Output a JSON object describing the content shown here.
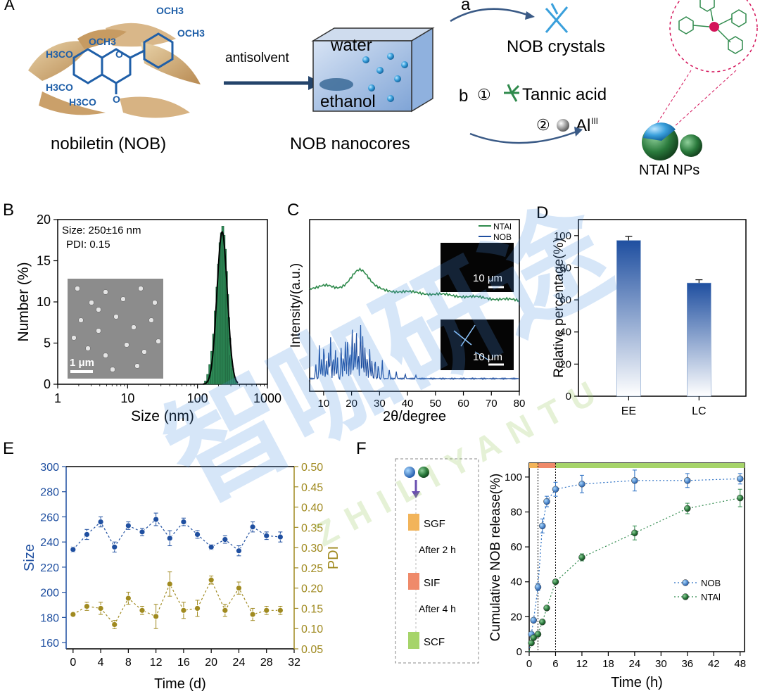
{
  "panels": {
    "A": "A",
    "a": "a",
    "b": "b",
    "B": "B",
    "C": "C",
    "D": "D",
    "E": "E",
    "F": "F"
  },
  "schematic": {
    "substituents": [
      "OCH3",
      "OCH3",
      "H3CO",
      "OCH3",
      "H3CO",
      "H3CO"
    ],
    "ring_oxygens": [
      "O",
      "O"
    ],
    "nobiletin_label": "nobiletin (NOB)",
    "antisolvent_label": "antisolvent",
    "water_label": "water",
    "ethanol_label": "ethanol",
    "nanocores_label": "NOB nanocores",
    "crystals_label": "NOB crystals",
    "step1_num": "①",
    "step1_label": "Tannic acid",
    "step2_num": "②",
    "step2_label": "Al",
    "step2_sup": "III",
    "ntal_label": "NTAl NPs",
    "colors": {
      "accent_blue": "#1f5fa8",
      "accent_green": "#2f8a4c",
      "magenta": "#d4145a"
    }
  },
  "watermark": {
    "text": "智咖研途",
    "subtext": "ZHILIYANTU"
  },
  "chart_data": [
    {
      "panel": "B",
      "type": "bar",
      "title": "",
      "xlabel": "Size (nm)",
      "ylabel": "Number (%)",
      "xscale": "log",
      "xlim": [
        1,
        1000
      ],
      "ylim": [
        0,
        20
      ],
      "xticks": [
        1,
        10,
        100,
        1000
      ],
      "xticklabels": [
        "1",
        "10",
        "100",
        "1000"
      ],
      "yticks": [
        0,
        5,
        10,
        15,
        20
      ],
      "yticklabels": [
        "0",
        "5",
        "10",
        "15",
        "20"
      ],
      "annotations": [
        "Size: 250±16 nm",
        "PDI: 0.15"
      ],
      "inset_scalebar": "1 μm",
      "bins": [
        130,
        140,
        150,
        160,
        170,
        180,
        190,
        200,
        210,
        220,
        230,
        240,
        250,
        260,
        270,
        280,
        290,
        300,
        320,
        340,
        360
      ],
      "values": [
        0.4,
        1.2,
        2.4,
        4.0,
        6.1,
        8.9,
        11.8,
        14.6,
        17.2,
        18.4,
        19.2,
        18.1,
        16.4,
        13.7,
        10.9,
        8.1,
        5.6,
        3.5,
        1.9,
        0.8,
        0.3
      ],
      "fit_peak": 225,
      "fit_max": 18.5
    },
    {
      "panel": "C",
      "type": "line",
      "xlabel": "2θ/degree",
      "ylabel": "Intensity/(a.u.)",
      "xlim": [
        5,
        80
      ],
      "xticks": [
        10,
        20,
        30,
        40,
        50,
        60,
        70,
        80
      ],
      "xticklabels": [
        "10",
        "20",
        "30",
        "40",
        "50",
        "60",
        "70",
        "80"
      ],
      "series": [
        {
          "name": "NTAl",
          "color": "#2f8a4c"
        },
        {
          "name": "NOB",
          "color": "#1f4fa0"
        }
      ],
      "nob_peaks": [
        7.2,
        8.5,
        9.3,
        10.1,
        11.0,
        11.8,
        12.5,
        13.4,
        14.2,
        15.0,
        16.3,
        17.1,
        17.8,
        18.6,
        19.4,
        20.2,
        21.0,
        21.7,
        22.4,
        23.2,
        24.0,
        24.8,
        25.6,
        26.5,
        27.3,
        28.4,
        29.6,
        31.0,
        33.5,
        36.0,
        39.2,
        43.0
      ],
      "nob_heights": [
        0.25,
        0.55,
        0.35,
        0.6,
        0.3,
        0.45,
        0.7,
        0.4,
        0.5,
        0.35,
        0.55,
        0.4,
        0.65,
        0.75,
        0.5,
        0.85,
        0.6,
        0.8,
        0.45,
        0.95,
        0.7,
        0.55,
        0.4,
        0.5,
        0.3,
        0.35,
        0.25,
        0.3,
        0.15,
        0.12,
        0.08,
        0.06
      ],
      "inset_scalebars": [
        "10 μm",
        "10 μm"
      ]
    },
    {
      "panel": "D",
      "type": "bar",
      "xlabel": "",
      "ylabel": "Relative percentage(%)",
      "ylim": [
        0,
        110
      ],
      "yticks": [
        0,
        20,
        40,
        60,
        80,
        100
      ],
      "yticklabels": [
        "0",
        "20",
        "40",
        "60",
        "80",
        "100"
      ],
      "categories": [
        "EE",
        "LC"
      ],
      "values": [
        97,
        70.5
      ],
      "errors": [
        2.5,
        2
      ]
    },
    {
      "panel": "E",
      "type": "line",
      "xlabel": "Time (d)",
      "ylabel": "Size",
      "y2label": "PDI",
      "xlim": [
        -1,
        32
      ],
      "ylim": [
        155,
        300
      ],
      "y2lim": [
        0.05,
        0.5
      ],
      "xticks": [
        0,
        4,
        8,
        12,
        16,
        20,
        24,
        28,
        32
      ],
      "xticklabels": [
        "0",
        "4",
        "8",
        "12",
        "16",
        "20",
        "24",
        "28",
        "32"
      ],
      "yticks": [
        160,
        180,
        200,
        220,
        240,
        260,
        280,
        300
      ],
      "yticklabels": [
        "160",
        "180",
        "200",
        "220",
        "240",
        "260",
        "280",
        "300"
      ],
      "y2ticks": [
        0.05,
        0.1,
        0.15,
        0.2,
        0.25,
        0.3,
        0.35,
        0.4,
        0.45,
        0.5
      ],
      "y2ticklabels": [
        "0.05",
        "0.10",
        "0.15",
        "0.20",
        "0.25",
        "0.30",
        "0.35",
        "0.40",
        "0.45",
        "0.50"
      ],
      "series": [
        {
          "name": "Size",
          "axis": "left",
          "color": "#1f4fa0",
          "x": [
            0,
            2,
            4,
            6,
            8,
            10,
            12,
            14,
            16,
            18,
            20,
            22,
            24,
            26,
            28,
            30
          ],
          "y": [
            234,
            246,
            256,
            236,
            253,
            248,
            258,
            243,
            256,
            246,
            236,
            242,
            233,
            252,
            245,
            244
          ],
          "err": [
            2,
            4,
            4,
            4,
            3,
            3,
            5,
            6,
            3,
            3,
            2,
            3,
            4,
            4,
            3,
            4
          ]
        },
        {
          "name": "PDI",
          "axis": "right",
          "color": "#a08a20",
          "x": [
            0,
            2,
            4,
            6,
            8,
            10,
            12,
            14,
            16,
            18,
            20,
            22,
            24,
            26,
            28,
            30
          ],
          "y": [
            0.135,
            0.155,
            0.15,
            0.11,
            0.175,
            0.145,
            0.13,
            0.21,
            0.145,
            0.15,
            0.22,
            0.145,
            0.2,
            0.135,
            0.145,
            0.145
          ],
          "err": [
            0.005,
            0.01,
            0.015,
            0.01,
            0.015,
            0.01,
            0.03,
            0.03,
            0.02,
            0.02,
            0.01,
            0.015,
            0.015,
            0.015,
            0.01,
            0.01
          ]
        }
      ]
    },
    {
      "panel": "F",
      "type": "scatter",
      "xlabel": "Time (h)",
      "ylabel": "Cumulative NOB release(%)",
      "xlim": [
        0,
        49
      ],
      "ylim": [
        0,
        108
      ],
      "xticks": [
        0,
        6,
        12,
        18,
        24,
        30,
        36,
        42,
        48
      ],
      "xticklabels": [
        "0",
        "6",
        "12",
        "18",
        "24",
        "30",
        "36",
        "42",
        "48"
      ],
      "yticks": [
        0,
        20,
        40,
        60,
        80,
        100
      ],
      "yticklabels": [
        "0",
        "20",
        "40",
        "60",
        "80",
        "100"
      ],
      "phases": [
        {
          "name": "SGF",
          "from": 0,
          "to": 2,
          "color": "#f2b45a"
        },
        {
          "name": "SIF",
          "from": 2,
          "to": 6,
          "color": "#ef8a6a"
        },
        {
          "name": "SCF",
          "from": 6,
          "to": 49,
          "color": "#a6d46a"
        }
      ],
      "vlines": [
        2,
        6
      ],
      "series": [
        {
          "name": "NOB",
          "color": "#2a6fc4",
          "x": [
            0.5,
            1,
            2,
            3,
            4,
            6,
            12,
            24,
            36,
            48
          ],
          "y": [
            10,
            18,
            37,
            72,
            86,
            93,
            96,
            98,
            98,
            99
          ],
          "err": [
            1,
            1,
            2,
            4,
            3,
            4,
            5,
            6,
            4,
            3
          ]
        },
        {
          "name": "NTAl",
          "color": "#2f8a4c",
          "x": [
            0.5,
            1,
            2,
            3,
            4,
            6,
            12,
            24,
            36,
            48
          ],
          "y": [
            5,
            8,
            10,
            17,
            25,
            40,
            54,
            68,
            82,
            88
          ],
          "err": [
            1,
            1,
            1,
            1,
            1,
            1,
            2,
            4,
            3,
            5
          ]
        }
      ],
      "legend_box": {
        "steps": [
          "SGF",
          "After 2 h",
          "SIF",
          "After 4 h",
          "SCF"
        ]
      }
    }
  ]
}
